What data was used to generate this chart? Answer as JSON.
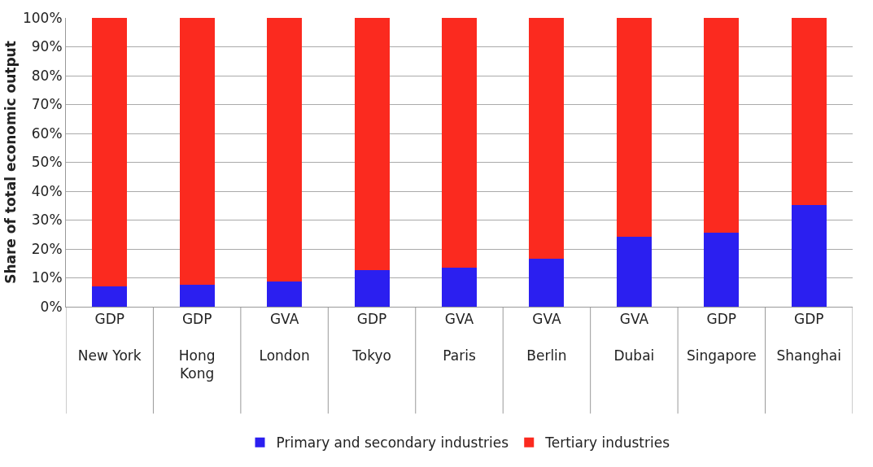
{
  "chart_data": {
    "type": "bar",
    "stacked": true,
    "ylabel": "Share of total economic output",
    "categories": [
      "GDP\n\nNew York",
      "GDP\n\nHong\nKong",
      "GVA\n\nLondon",
      "GDP\n\nTokyo",
      "GVA\n\nParis",
      "GVA\n\nBerlin",
      "GVA\n\nDubai",
      "GDP\n\nSingapore",
      "GDP\n\nShanghai"
    ],
    "series": [
      {
        "name": "Primary and secondary industries",
        "color": "#2b1ff0",
        "values": [
          7.1,
          7.6,
          8.7,
          12.7,
          13.5,
          16.5,
          24.2,
          25.5,
          35.1
        ]
      },
      {
        "name": "Tertiary industries",
        "color": "#fb2a1f",
        "values": [
          92.9,
          92.4,
          91.3,
          87.3,
          86.5,
          83.5,
          75.8,
          74.5,
          64.9
        ]
      }
    ],
    "ylim": [
      0,
      100
    ],
    "yticks": [
      {
        "value": 0,
        "label": "0%"
      },
      {
        "value": 10,
        "label": "10%"
      },
      {
        "value": 20,
        "label": "20%"
      },
      {
        "value": 30,
        "label": "30%"
      },
      {
        "value": 40,
        "label": "40%"
      },
      {
        "value": 50,
        "label": "50%"
      },
      {
        "value": 60,
        "label": "60%"
      },
      {
        "value": 70,
        "label": "70%"
      },
      {
        "value": 80,
        "label": "80%"
      },
      {
        "value": 90,
        "label": "90%"
      },
      {
        "value": 100,
        "label": "100%"
      }
    ],
    "grid": "y",
    "legend": "bottom"
  }
}
